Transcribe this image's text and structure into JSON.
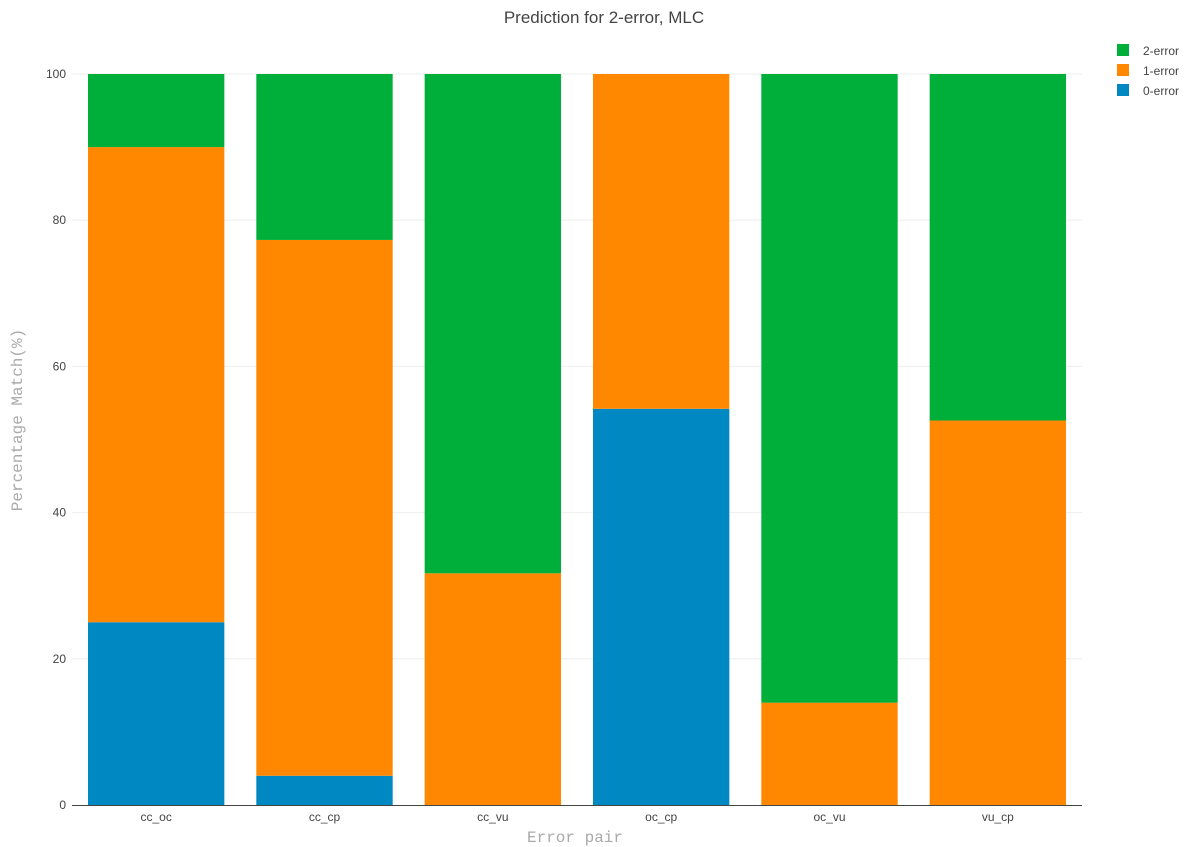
{
  "chart_data": {
    "type": "bar",
    "stacked": true,
    "title": "Prediction for 2-error, MLC",
    "xlabel": "Error pair",
    "ylabel": "Percentage Match(%)",
    "ylim": [
      0,
      100
    ],
    "yticks": [
      "0",
      "20",
      "40",
      "60",
      "80",
      "100"
    ],
    "grid": true,
    "legend_position": "top-right",
    "categories": [
      "cc_oc",
      "cc_cp",
      "cc_vu",
      "oc_cp",
      "oc_vu",
      "vu_cp"
    ],
    "series": [
      {
        "name": "0-error",
        "color": "#0088c2",
        "values": [
          25,
          4,
          0,
          54.2,
          0,
          0
        ]
      },
      {
        "name": "1-error",
        "color": "#ff8800",
        "values": [
          65,
          73.3,
          31.7,
          45.8,
          14,
          52.6
        ]
      },
      {
        "name": "2-error",
        "color": "#00ae3a",
        "values": [
          10,
          22.7,
          68.3,
          0,
          86,
          47.4
        ]
      }
    ],
    "legend_order": [
      "2-error",
      "1-error",
      "0-error"
    ]
  }
}
